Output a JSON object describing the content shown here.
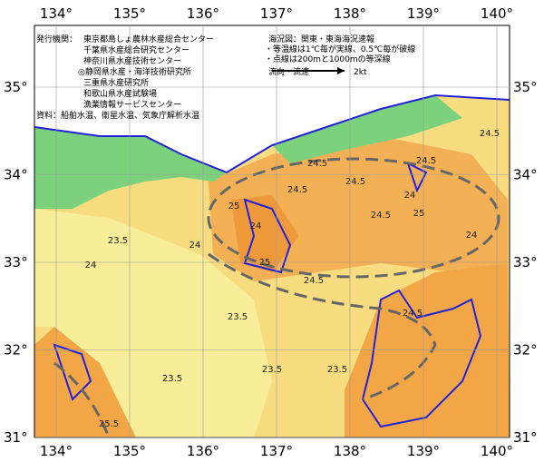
{
  "map": {
    "lon_ticks": [
      {
        "value": 134,
        "label": "134°"
      },
      {
        "value": 135,
        "label": "135°"
      },
      {
        "value": 136,
        "label": "136°"
      },
      {
        "value": 137,
        "label": "137°"
      },
      {
        "value": 138,
        "label": "138°"
      },
      {
        "value": 139,
        "label": "139°"
      },
      {
        "value": 140,
        "label": "140°"
      }
    ],
    "lat_ticks": [
      {
        "value": 31,
        "label": "31°"
      },
      {
        "value": 32,
        "label": "32°"
      },
      {
        "value": 33,
        "label": "33°"
      },
      {
        "value": 34,
        "label": "34°"
      },
      {
        "value": 35,
        "label": "35°"
      }
    ],
    "issuer_label": "発行機関：",
    "issuers": [
      "東京都島しょ農林水産総合センター",
      "千葉県水産総合研究センター",
      "神奈川県水産技術センター",
      "◎静岡県水産・海洋技術研究所",
      "三重県水産研究所",
      "和歌山県水産試験場",
      "漁業情報サービスセンター"
    ],
    "source": "資料：船舶水温、衛星水温、気象庁解析水温",
    "chart_name": "海況図：関東・東海海況速報",
    "notes": [
      "・等温線は1℃毎が実線、0.5℃毎が破線",
      "・点線は200mと1000mの等深線"
    ],
    "current_legend": "流向・流速",
    "current_speed": "2kt",
    "isotherm_labels": [
      "24.5",
      "24.5",
      "24.5",
      "24.5",
      "24.5",
      "24.5",
      "24",
      "24",
      "24",
      "24",
      "25",
      "25",
      "25",
      "23.5",
      "23.5",
      "23.5",
      "23.5",
      "24.5",
      "25.5",
      "23.5",
      "24.5",
      "24"
    ]
  }
}
